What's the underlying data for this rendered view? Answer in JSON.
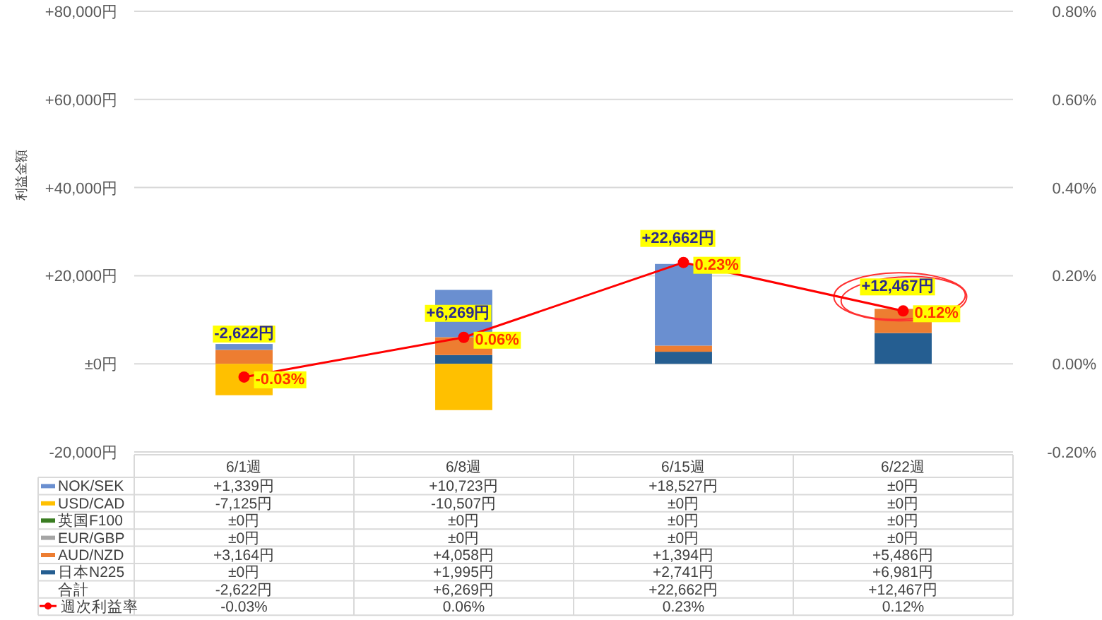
{
  "chart_data": {
    "type": "bar",
    "stacked": true,
    "ylabel": "利益金額",
    "categories": [
      "6/1週",
      "6/8週",
      "6/15週",
      "6/22週"
    ],
    "series": [
      {
        "name": "日本N225",
        "color": "#255e91",
        "values": [
          0,
          1995,
          2741,
          6981
        ],
        "value_labels": [
          "±0円",
          "+1,995円",
          "+2,741円",
          "+6,981円"
        ]
      },
      {
        "name": "AUD/NZD",
        "color": "#ed7d31",
        "values": [
          3164,
          4058,
          1394,
          5486
        ],
        "value_labels": [
          "+3,164円",
          "+4,058円",
          "+1,394円",
          "+5,486円"
        ]
      },
      {
        "name": "EUR/GBP",
        "color": "#a5a5a5",
        "values": [
          0,
          0,
          0,
          0
        ],
        "value_labels": [
          "±0円",
          "±0円",
          "±0円",
          "±0円"
        ]
      },
      {
        "name": "英国F100",
        "color": "#3a7d22",
        "values": [
          0,
          0,
          0,
          0
        ],
        "value_labels": [
          "±0円",
          "±0円",
          "±0円",
          "±0円"
        ]
      },
      {
        "name": "USD/CAD",
        "color": "#ffc000",
        "values": [
          -7125,
          -10507,
          0,
          0
        ],
        "value_labels": [
          "-7,125円",
          "-10,507円",
          "±0円",
          "±0円"
        ]
      },
      {
        "name": "NOK/SEK",
        "color": "#6a8fd0",
        "values": [
          1339,
          10723,
          18527,
          0
        ],
        "value_labels": [
          "+1,339円",
          "+10,723円",
          "+18,527円",
          "±0円"
        ]
      },
      {
        "name": "週次利益率",
        "type": "line",
        "axis": "y2",
        "color": "#ff0000",
        "values": [
          -0.03,
          0.06,
          0.23,
          0.12
        ],
        "value_labels": [
          "-0.03%",
          "0.06%",
          "0.23%",
          "0.12%"
        ]
      }
    ],
    "totals": [
      "-2,622円",
      "+6,269円",
      "+22,662円",
      "+12,467円"
    ],
    "annotations": [
      "合計"
    ],
    "ylim": [
      -20000,
      80000
    ],
    "yticks": [
      {
        "value": -20000,
        "label": "-20,000円"
      },
      {
        "value": 0,
        "label": "±0円"
      },
      {
        "value": 20000,
        "label": "+20,000円"
      },
      {
        "value": 40000,
        "label": "+40,000円"
      },
      {
        "value": 60000,
        "label": "+60,000円"
      },
      {
        "value": 80000,
        "label": "+80,000円"
      }
    ],
    "y2lim": [
      -0.2,
      0.8
    ],
    "y2ticks": [
      {
        "value": -0.2,
        "label": "-0.20%"
      },
      {
        "value": 0,
        "label": "0.00%"
      },
      {
        "value": 0.2,
        "label": "0.20%"
      },
      {
        "value": 0.4,
        "label": "0.40%"
      },
      {
        "value": 0.6,
        "label": "0.60%"
      },
      {
        "value": 0.8,
        "label": "0.80%"
      }
    ],
    "grid": "y",
    "legend": "bottom",
    "marker": "circle"
  }
}
